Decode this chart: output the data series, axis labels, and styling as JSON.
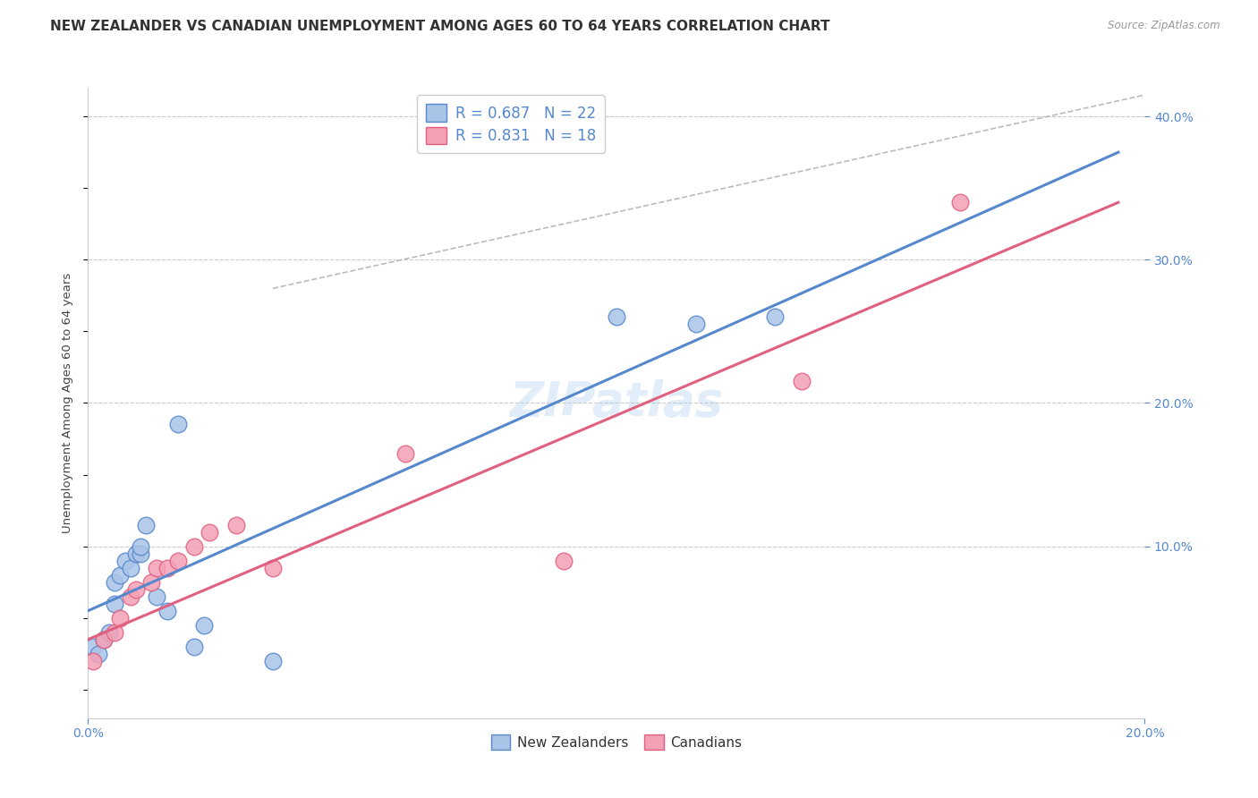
{
  "title": "NEW ZEALANDER VS CANADIAN UNEMPLOYMENT AMONG AGES 60 TO 64 YEARS CORRELATION CHART",
  "source_text": "Source: ZipAtlas.com",
  "ylabel": "Unemployment Among Ages 60 to 64 years",
  "xlim": [
    0.0,
    0.2
  ],
  "ylim": [
    -0.02,
    0.42
  ],
  "xticks": [
    0.0,
    0.2
  ],
  "yticks_right": [
    0.1,
    0.2,
    0.3,
    0.4
  ],
  "background_color": "#ffffff",
  "grid_color": "#cccccc",
  "nz_color": "#aac4e8",
  "ca_color": "#f4a0b5",
  "nz_line_color": "#5588cc",
  "ca_line_color": "#e06080",
  "axis_label_color": "#5588cc",
  "legend_r_nz": "R = 0.687",
  "legend_n_nz": "N = 22",
  "legend_r_ca": "R = 0.831",
  "legend_n_ca": "N = 18",
  "nz_label": "New Zealanders",
  "ca_label": "Canadians",
  "nz_x": [
    0.001,
    0.002,
    0.003,
    0.004,
    0.005,
    0.005,
    0.006,
    0.007,
    0.008,
    0.009,
    0.01,
    0.01,
    0.011,
    0.013,
    0.015,
    0.017,
    0.02,
    0.022,
    0.035,
    0.1,
    0.115,
    0.13
  ],
  "nz_y": [
    0.03,
    0.025,
    0.035,
    0.04,
    0.06,
    0.075,
    0.08,
    0.09,
    0.085,
    0.095,
    0.095,
    0.1,
    0.115,
    0.065,
    0.055,
    0.185,
    0.03,
    0.045,
    0.02,
    0.26,
    0.255,
    0.26
  ],
  "ca_x": [
    0.001,
    0.003,
    0.005,
    0.006,
    0.008,
    0.009,
    0.012,
    0.013,
    0.015,
    0.017,
    0.02,
    0.023,
    0.028,
    0.035,
    0.06,
    0.09,
    0.135,
    0.165
  ],
  "ca_y": [
    0.02,
    0.035,
    0.04,
    0.05,
    0.065,
    0.07,
    0.075,
    0.085,
    0.085,
    0.09,
    0.1,
    0.11,
    0.115,
    0.085,
    0.165,
    0.09,
    0.215,
    0.34
  ],
  "nz_line_x": [
    0.0,
    0.195
  ],
  "nz_line_y": [
    0.055,
    0.375
  ],
  "ca_line_x": [
    0.0,
    0.195
  ],
  "ca_line_y": [
    0.035,
    0.34
  ],
  "diag_line_x": [
    0.035,
    0.2
  ],
  "diag_line_y": [
    0.28,
    0.415
  ],
  "diag_line_color": "#bbbbbb",
  "title_fontsize": 11,
  "axis_fontsize": 9.5,
  "tick_fontsize": 10,
  "scatter_size": 180
}
